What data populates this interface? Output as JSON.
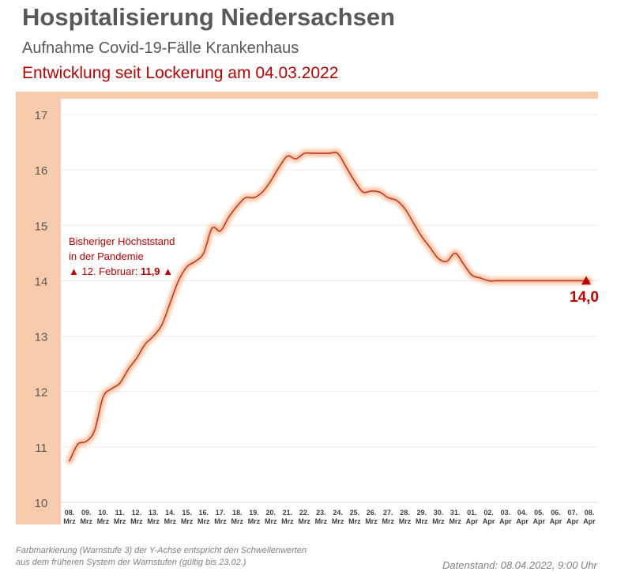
{
  "header": {
    "title": "Hospitalisierung Niedersachsen",
    "subtitle": "Aufnahme Covid-19-Fälle Krankenhaus",
    "subtitle2": "Entwicklung seit Lockerung am 04.03.2022"
  },
  "annotation": {
    "line1": "Bisheriger Höchststand",
    "line2": "in der Pandemie",
    "marker": "▲",
    "date_text": "12. Februar:",
    "value_text": "11,9"
  },
  "end_label": "14,0",
  "footnote": {
    "line1": "Farbmarkierung (Warnstufe 3) der Y-Achse entspricht den Schwellenwerten",
    "line2": "aus dem früheren System der Warnstufen (gültig bis 23.02.)"
  },
  "datestamp": "Datenstand: 08.04.2022, 9:00 Uhr",
  "colors": {
    "line": "#c0392b",
    "glow": "#f4b183",
    "band": "#f8cbad",
    "accent": "#c00000"
  },
  "chart_data": {
    "type": "line",
    "title": "Hospitalisierung Niedersachsen",
    "xlabel": "",
    "ylabel": "",
    "ylim": [
      10,
      17
    ],
    "yticks": [
      10,
      11,
      12,
      13,
      14,
      15,
      16,
      17
    ],
    "grid": true,
    "categories": [
      {
        "day": "08.",
        "month": "Mrz"
      },
      {
        "day": "09.",
        "month": "Mrz"
      },
      {
        "day": "10.",
        "month": "Mrz"
      },
      {
        "day": "11.",
        "month": "Mrz"
      },
      {
        "day": "12.",
        "month": "Mrz"
      },
      {
        "day": "13.",
        "month": "Mrz"
      },
      {
        "day": "14.",
        "month": "Mrz"
      },
      {
        "day": "15.",
        "month": "Mrz"
      },
      {
        "day": "16.",
        "month": "Mrz"
      },
      {
        "day": "17.",
        "month": "Mrz"
      },
      {
        "day": "18.",
        "month": "Mrz"
      },
      {
        "day": "19.",
        "month": "Mrz"
      },
      {
        "day": "20.",
        "month": "Mrz"
      },
      {
        "day": "21.",
        "month": "Mrz"
      },
      {
        "day": "22.",
        "month": "Mrz"
      },
      {
        "day": "23.",
        "month": "Mrz"
      },
      {
        "day": "24.",
        "month": "Mrz"
      },
      {
        "day": "25.",
        "month": "Mrz"
      },
      {
        "day": "26.",
        "month": "Mrz"
      },
      {
        "day": "27.",
        "month": "Mrz"
      },
      {
        "day": "28.",
        "month": "Mrz"
      },
      {
        "day": "29.",
        "month": "Mrz"
      },
      {
        "day": "30.",
        "month": "Mrz"
      },
      {
        "day": "31.",
        "month": "Mrz"
      },
      {
        "day": "01.",
        "month": "Apr"
      },
      {
        "day": "02.",
        "month": "Apr"
      },
      {
        "day": "03.",
        "month": "Apr"
      },
      {
        "day": "04.",
        "month": "Apr"
      },
      {
        "day": "05.",
        "month": "Apr"
      },
      {
        "day": "06.",
        "month": "Apr"
      },
      {
        "day": "07.",
        "month": "Apr"
      },
      {
        "day": "08.",
        "month": "Apr"
      }
    ],
    "series": [
      {
        "name": "Hospitalisierung",
        "x": [
          0,
          0.5,
          1,
          1.5,
          2,
          2.5,
          3,
          3.5,
          4,
          4.5,
          5,
          5.5,
          6,
          6.5,
          7,
          7.5,
          8,
          8.5,
          9,
          9.5,
          10,
          10.5,
          11,
          11.5,
          12,
          12.5,
          13,
          13.5,
          14,
          14.5,
          15,
          15.5,
          16,
          16.5,
          17,
          17.5,
          18,
          18.5,
          19,
          19.5,
          20,
          20.5,
          21,
          21.5,
          22,
          22.5,
          23,
          23.5,
          24,
          24.5,
          25,
          25.5,
          26,
          26.5,
          27,
          27.5,
          28,
          28.5,
          29,
          29.5,
          30,
          30.5,
          31
        ],
        "values": [
          10.75,
          11.05,
          11.1,
          11.3,
          11.9,
          12.05,
          12.15,
          12.4,
          12.6,
          12.85,
          13.0,
          13.2,
          13.6,
          14.0,
          14.25,
          14.35,
          14.5,
          14.95,
          14.9,
          15.15,
          15.35,
          15.5,
          15.5,
          15.6,
          15.8,
          16.05,
          16.25,
          16.2,
          16.3,
          16.3,
          16.3,
          16.3,
          16.3,
          16.05,
          15.8,
          15.6,
          15.62,
          15.6,
          15.5,
          15.45,
          15.3,
          15.05,
          14.8,
          14.6,
          14.4,
          14.35,
          14.5,
          14.3,
          14.1,
          14.05,
          14.0,
          14.0,
          14.0,
          14.0,
          14.0,
          14.0,
          14.0,
          14.0,
          14.0,
          14.0,
          14.0,
          14.0,
          14.0
        ]
      }
    ],
    "last_value": 14.0
  }
}
